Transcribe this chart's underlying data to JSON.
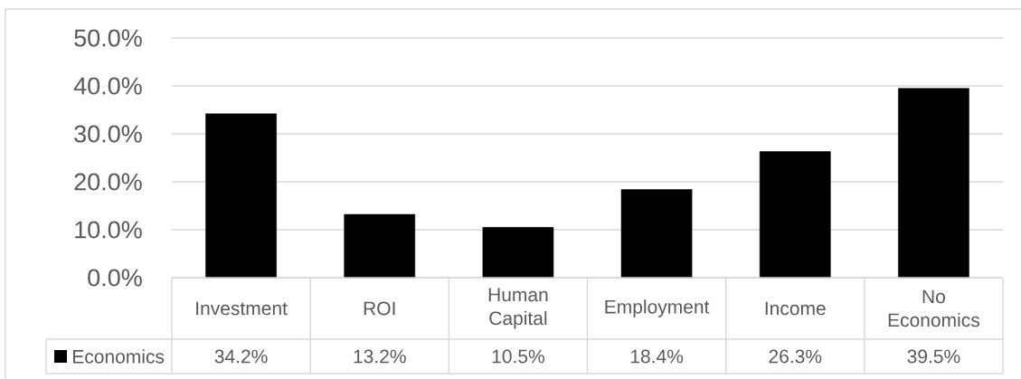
{
  "chart_data": {
    "type": "bar",
    "categories": [
      "Investment",
      "ROI",
      "Human Capital",
      "Employment",
      "Income",
      "No Economics"
    ],
    "series": [
      {
        "name": "Economics",
        "color": "#000000",
        "values": [
          34.2,
          13.2,
          10.5,
          18.4,
          26.3,
          39.5
        ],
        "value_labels": [
          "34.2%",
          "13.2%",
          "10.5%",
          "18.4%",
          "26.3%",
          "39.5%"
        ]
      }
    ],
    "ylim": [
      0,
      50
    ],
    "yticks": [
      {
        "value": 0,
        "label": "0.0%"
      },
      {
        "value": 10,
        "label": "10.0%"
      },
      {
        "value": 20,
        "label": "20.0%"
      },
      {
        "value": 30,
        "label": "30.0%"
      },
      {
        "value": 40,
        "label": "40.0%"
      },
      {
        "value": 50,
        "label": "50.0%"
      }
    ],
    "grid": "y",
    "legend": "bottom"
  }
}
